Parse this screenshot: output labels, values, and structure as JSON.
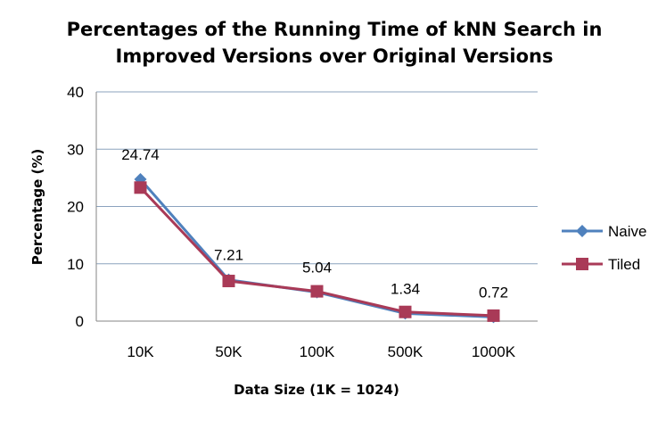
{
  "chart_data": {
    "type": "line",
    "title_lines": [
      "Percentages of the Running Time of kNN Search in",
      "Improved Versions over Original Versions"
    ],
    "xlabel": "Data Size (1K = 1024)",
    "ylabel": "Percentage (%)",
    "categories": [
      "10K",
      "50K",
      "100K",
      "500K",
      "1000K"
    ],
    "ylim": [
      0,
      40
    ],
    "yticks": [
      0,
      10,
      20,
      30,
      40
    ],
    "grid": true,
    "legend_position": "right",
    "series": [
      {
        "name": "Naive",
        "values": [
          24.74,
          7.21,
          5.04,
          1.34,
          0.72
        ],
        "color": "#4F81BD",
        "marker": "diamond"
      },
      {
        "name": "Tiled",
        "values": [
          23.3,
          7.0,
          5.2,
          1.6,
          0.95
        ],
        "color": "#A93A57",
        "marker": "square"
      }
    ],
    "data_labels": [
      "24.74",
      "7.21",
      "5.04",
      "1.34",
      "0.72"
    ]
  }
}
